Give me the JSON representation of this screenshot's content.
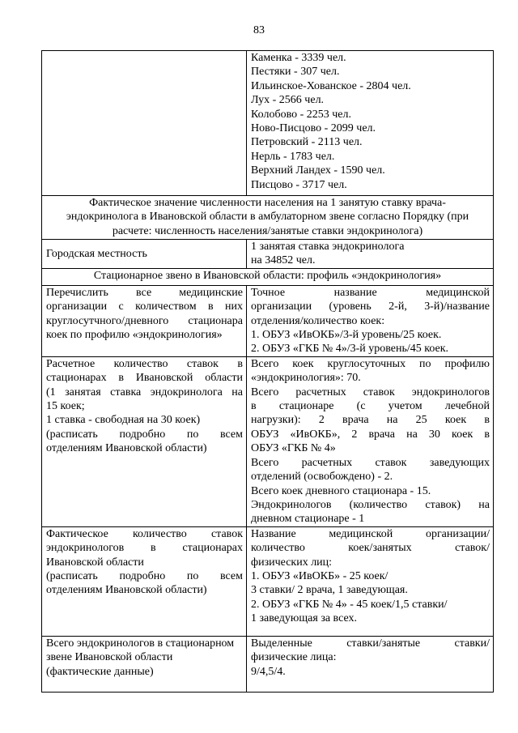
{
  "page_number": "83",
  "rows": [
    {
      "left": [],
      "right": [
        [
          "Каменка - 3339 чел."
        ],
        [
          "Пестяки - 307 чел."
        ],
        [
          "Ильинское-Хованское - 2804 чел."
        ],
        [
          "Лух - 2566 чел."
        ],
        [
          "Колобово - 2253 чел."
        ],
        [
          "Ново-Писцово - 2099 чел."
        ],
        [
          "Петровский - 2113 чел."
        ],
        [
          "Нерль - 1783 чел."
        ],
        [
          "Верхний Ландех - 1590 чел."
        ],
        [
          "Писцово - 3717 чел."
        ]
      ]
    },
    {
      "full": [
        "Фактическое значение численности населения на 1 занятую ставку врача-",
        "эндокринолога в Ивановской области в амбулаторном звене согласно Порядку (при",
        "расчете: численность населения/занятые ставки эндокринолога)"
      ]
    },
    {
      "left": [
        [
          "Городская местность"
        ]
      ],
      "right": [
        [
          "1 занятая ставка эндокринолога"
        ],
        [
          "на 34852 чел."
        ]
      ]
    },
    {
      "full": [
        "Стационарное звено в Ивановской области: профиль «эндокринология»"
      ]
    },
    {
      "left": [
        [
          "Перечислить все медицинские",
          "организации с количеством в них",
          "круглосутчного/дневного стационара",
          "коек по профилю «эндокринология»"
        ]
      ],
      "right": [
        [
          "Точное название медицинской",
          "организации (уровень 2-й, 3-й)/название",
          "отделения/количество коек:"
        ],
        [
          "1. ОБУЗ «ИвОКБ»/3-й уровень/25 коек."
        ],
        [
          "2. ОБУЗ «ГКБ № 4»/3-й уровень/45 коек."
        ]
      ]
    },
    {
      "left": [
        [
          "Расчетное количество ставок в",
          "стационарах в Ивановской области",
          "(1 занятая ставка эндокринолога на",
          "15 коек;"
        ],
        [
          "1 ставка - свободная на 30 коек)"
        ],
        [
          "(расписать подробно по всем",
          "отделениям Ивановской области)"
        ]
      ],
      "right": [
        [
          "Всего коек круглосуточных по профилю",
          "«эндокринология»: 70."
        ],
        [
          "Всего расчетных ставок эндокринологов",
          "в стационаре (с учетом лечебной",
          "нагрузки): 2 врача на 25 коек в",
          "ОБУЗ «ИвОКБ», 2 врача на 30 коек в",
          "ОБУЗ «ГКБ № 4»"
        ],
        [
          "Всего расчетных ставок заведующих",
          "отделений (освобождено) - 2."
        ],
        [
          "Всего коек дневного стационара - 15."
        ],
        [
          "Эндокринологов (количество ставок)  на",
          "дневном стационаре - 1"
        ]
      ]
    },
    {
      "left": [
        [
          "Фактическое количество ставок",
          "эндокринологов в стационарах",
          "Ивановской области"
        ],
        [
          "(расписать подробно по всем",
          "отделениям Ивановской области)"
        ]
      ],
      "right": [
        [
          "Название медицинской организации/",
          "количество коек/занятых ставок/",
          "физических лиц:"
        ],
        [
          "1. ОБУЗ «ИвОКБ» - 25 коек/"
        ],
        [
          "3 ставки/ 2 врача, 1 заведующая."
        ],
        [
          "2. ОБУЗ «ГКБ № 4» - 45 коек/1,5 ставки/"
        ],
        [
          "1 заведующая за всех."
        ]
      ]
    },
    {
      "left": [
        [
          "Всего эндокринологов в стационарном"
        ],
        [
          "звене Ивановской области"
        ],
        [
          "(фактические данные)"
        ]
      ],
      "right": [
        [
          "Выделенные ставки/занятые ставки/",
          "физические лица:"
        ],
        [
          "9/4,5/4."
        ]
      ]
    }
  ]
}
